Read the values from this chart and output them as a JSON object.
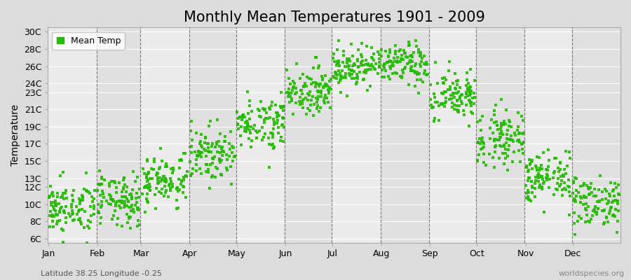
{
  "title": "Monthly Mean Temperatures 1901 - 2009",
  "ylabel": "Temperature",
  "subtitle": "Latitude 38.25 Longitude -0.25",
  "watermark": "worldspecies.org",
  "dot_color": "#22BB00",
  "bg_color": "#DCDCDC",
  "plot_bg_color": "#EBEBEB",
  "ytick_labels": [
    "6C",
    "8C",
    "10C",
    "12C",
    "13C",
    "15C",
    "17C",
    "19C",
    "21C",
    "23C",
    "24C",
    "26C",
    "28C",
    "30C"
  ],
  "ytick_values": [
    6,
    8,
    10,
    12,
    13,
    15,
    17,
    19,
    21,
    23,
    24,
    26,
    28,
    30
  ],
  "months": [
    "Jan",
    "Feb",
    "Mar",
    "Apr",
    "May",
    "Jun",
    "Jul",
    "Aug",
    "Sep",
    "Oct",
    "Nov",
    "Dec"
  ],
  "month_start_days": [
    1,
    32,
    60,
    91,
    121,
    152,
    182,
    213,
    244,
    274,
    305,
    335
  ],
  "month_lengths": [
    31,
    28,
    31,
    30,
    31,
    30,
    31,
    31,
    30,
    31,
    30,
    31
  ],
  "mean_temps": [
    9.5,
    10.3,
    12.8,
    15.8,
    19.5,
    23.2,
    26.0,
    26.2,
    22.5,
    17.8,
    13.0,
    10.3
  ],
  "std_temps": [
    1.5,
    1.5,
    1.5,
    1.5,
    1.5,
    1.3,
    1.2,
    1.2,
    1.5,
    1.6,
    1.5,
    1.5
  ],
  "n_years": 109,
  "ylim": [
    5.5,
    30.5
  ],
  "total_days": 365,
  "legend_label": "Mean Temp",
  "title_fontsize": 15,
  "label_fontsize": 10,
  "tick_fontsize": 9,
  "subtitle_fontsize": 8,
  "watermark_fontsize": 8,
  "marker_size": 12,
  "grid_color": "#FFFFFF",
  "dashed_color": "#777777",
  "band_colors": [
    "#EBEBEB",
    "#E0E0E0"
  ]
}
